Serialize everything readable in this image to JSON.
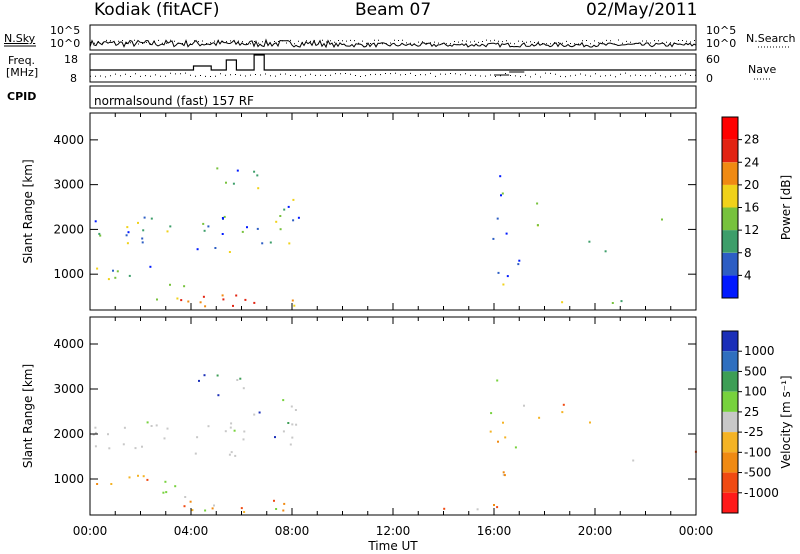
{
  "header": {
    "title": "Kodiak (fitACF)",
    "beam": "Beam 07",
    "date": "02/May/2011"
  },
  "params": {
    "nsky_label": "N.Sky",
    "nsky_ticks": [
      "10^5",
      "10^0"
    ],
    "nsearch_label": "N.Search",
    "nsearch_ticks": [
      "10^5",
      "10^0"
    ],
    "freq_label_1": "Freq.",
    "freq_label_2": "[MHz]",
    "freq_ticks": [
      "18",
      "8"
    ],
    "nave_label": "Nave",
    "nave_ticks": [
      "60",
      "0"
    ],
    "cpid_label": "CPID",
    "cpid_text": "normalsound (fast) 157 RF"
  },
  "chart_data": [
    {
      "type": "heatmap",
      "name": "power",
      "xlabel": "",
      "ylabel": "Slant Range [km]",
      "ylim": [
        200,
        4600
      ],
      "yticks": [
        1000,
        2000,
        3000,
        4000
      ],
      "colorbar": {
        "label": "Power [dB]",
        "ticks": [
          "4",
          "8",
          "12",
          "16",
          "20",
          "24",
          "28"
        ],
        "colors": [
          "#0019ff",
          "#2d5ec4",
          "#3d9e6a",
          "#77c23d",
          "#f0d21a",
          "#f08a12",
          "#e22412",
          "#ff0000"
        ]
      }
    },
    {
      "type": "heatmap",
      "name": "velocity",
      "xlabel": "Time UT",
      "ylabel": "Slant Range [km]",
      "ylim": [
        200,
        4600
      ],
      "yticks": [
        1000,
        2000,
        3000,
        4000
      ],
      "xticks": [
        "00:00",
        "04:00",
        "08:00",
        "12:00",
        "16:00",
        "20:00",
        "00:00"
      ],
      "colorbar": {
        "label": "Velocity [m s⁻¹]",
        "ticks": [
          "1000",
          "500",
          "100",
          "25",
          "-25",
          "-100",
          "-500",
          "-1000"
        ],
        "colors": [
          "#1b2fb8",
          "#2f6fbf",
          "#3d9e55",
          "#77d23d",
          "#c8c8c8",
          "#f4b325",
          "#f08a12",
          "#f04a12",
          "#ff1a1a"
        ]
      }
    }
  ]
}
